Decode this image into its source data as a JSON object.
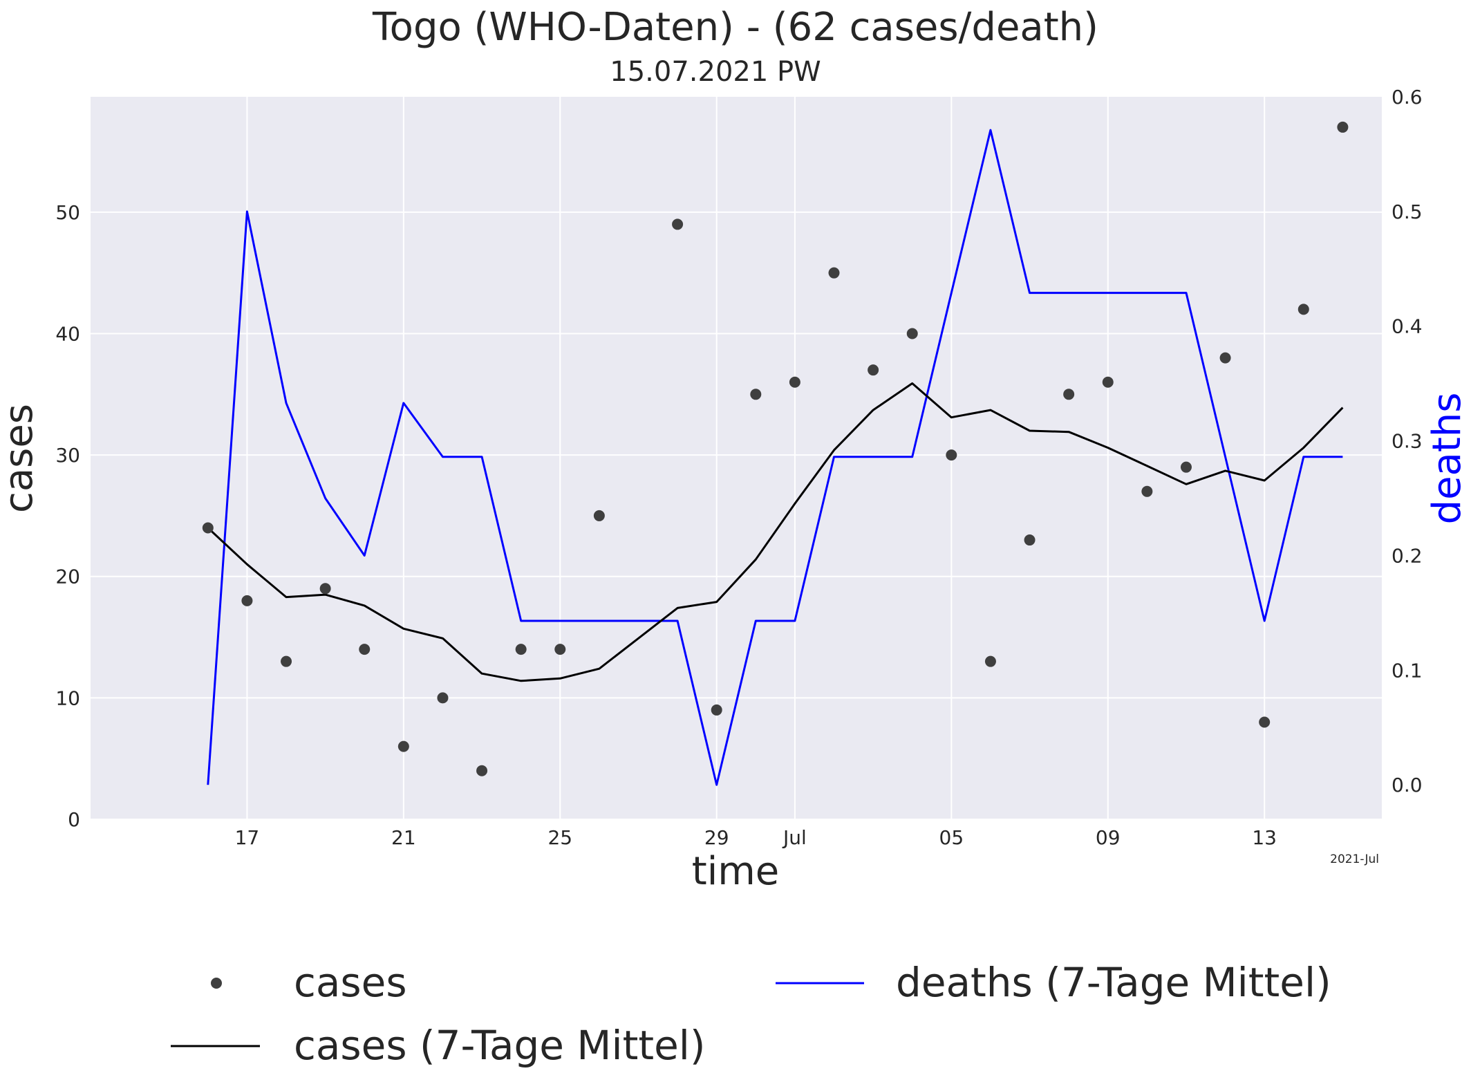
{
  "chart_data": {
    "type": "line",
    "title": "Togo (WHO-Daten) - (62 cases/death)",
    "subtitle": "15.07.2021 PW",
    "xlabel": "time",
    "ylabel": "cases",
    "y2label": "deaths",
    "x_offset_label": "2021-Jul",
    "x": [
      "2021-06-16",
      "2021-06-17",
      "2021-06-18",
      "2021-06-19",
      "2021-06-20",
      "2021-06-21",
      "2021-06-22",
      "2021-06-23",
      "2021-06-24",
      "2021-06-25",
      "2021-06-26",
      "2021-06-27",
      "2021-06-28",
      "2021-06-29",
      "2021-06-30",
      "2021-07-01",
      "2021-07-02",
      "2021-07-03",
      "2021-07-04",
      "2021-07-05",
      "2021-07-06",
      "2021-07-07",
      "2021-07-08",
      "2021-07-09",
      "2021-07-10",
      "2021-07-11",
      "2021-07-12",
      "2021-07-13",
      "2021-07-14",
      "2021-07-15"
    ],
    "xlim": [
      "2021-06-13",
      "2021-07-16"
    ],
    "xticks": [
      {
        "date": "2021-06-17",
        "label": "17"
      },
      {
        "date": "2021-06-21",
        "label": "21"
      },
      {
        "date": "2021-06-25",
        "label": "25"
      },
      {
        "date": "2021-06-29",
        "label": "29"
      },
      {
        "date": "2021-07-01",
        "label": "Jul"
      },
      {
        "date": "2021-07-05",
        "label": "05"
      },
      {
        "date": "2021-07-09",
        "label": "09"
      },
      {
        "date": "2021-07-13",
        "label": "13"
      }
    ],
    "ylim": [
      0,
      59.5
    ],
    "yticks": [
      0,
      10,
      20,
      30,
      40,
      50
    ],
    "y2lim": [
      -0.03,
      0.6
    ],
    "y2ticks": [
      0.0,
      0.1,
      0.2,
      0.3,
      0.4,
      0.5,
      0.6
    ],
    "series": [
      {
        "name": "cases",
        "type": "scatter",
        "axis": "left",
        "color": "#3f3f3f",
        "values": [
          24,
          18,
          13,
          19,
          14,
          6,
          10,
          4,
          14,
          14,
          25,
          null,
          49,
          9,
          35,
          36,
          45,
          37,
          40,
          30,
          13,
          23,
          35,
          36,
          27,
          29,
          38,
          8,
          42,
          57
        ]
      },
      {
        "name": "cases (7-Tage Mittel)",
        "type": "line",
        "axis": "left",
        "color": "#000000",
        "values": [
          24,
          21,
          18.3,
          18.5,
          17.6,
          15.7,
          14.9,
          12,
          11.4,
          11.6,
          12.4,
          14.9,
          17.4,
          17.9,
          21.4,
          26,
          30.4,
          33.7,
          35.9,
          33.1,
          33.7,
          32,
          31.9,
          30.6,
          29.1,
          27.6,
          28.7,
          27.9,
          30.6,
          33.9
        ]
      },
      {
        "name": "deaths (7-Tage Mittel)",
        "type": "line",
        "axis": "right",
        "color": "#0000ff",
        "values": [
          0,
          0.5,
          0.333,
          0.25,
          0.2,
          0.333,
          0.286,
          0.286,
          0.143,
          0.143,
          0.143,
          0.143,
          0.143,
          0,
          0.143,
          0.143,
          0.286,
          0.286,
          0.286,
          0.429,
          0.571,
          0.429,
          0.429,
          0.429,
          0.429,
          0.429,
          0.286,
          0.143,
          0.286,
          0.286
        ]
      }
    ],
    "grid": true,
    "legend_position": "bottom"
  }
}
